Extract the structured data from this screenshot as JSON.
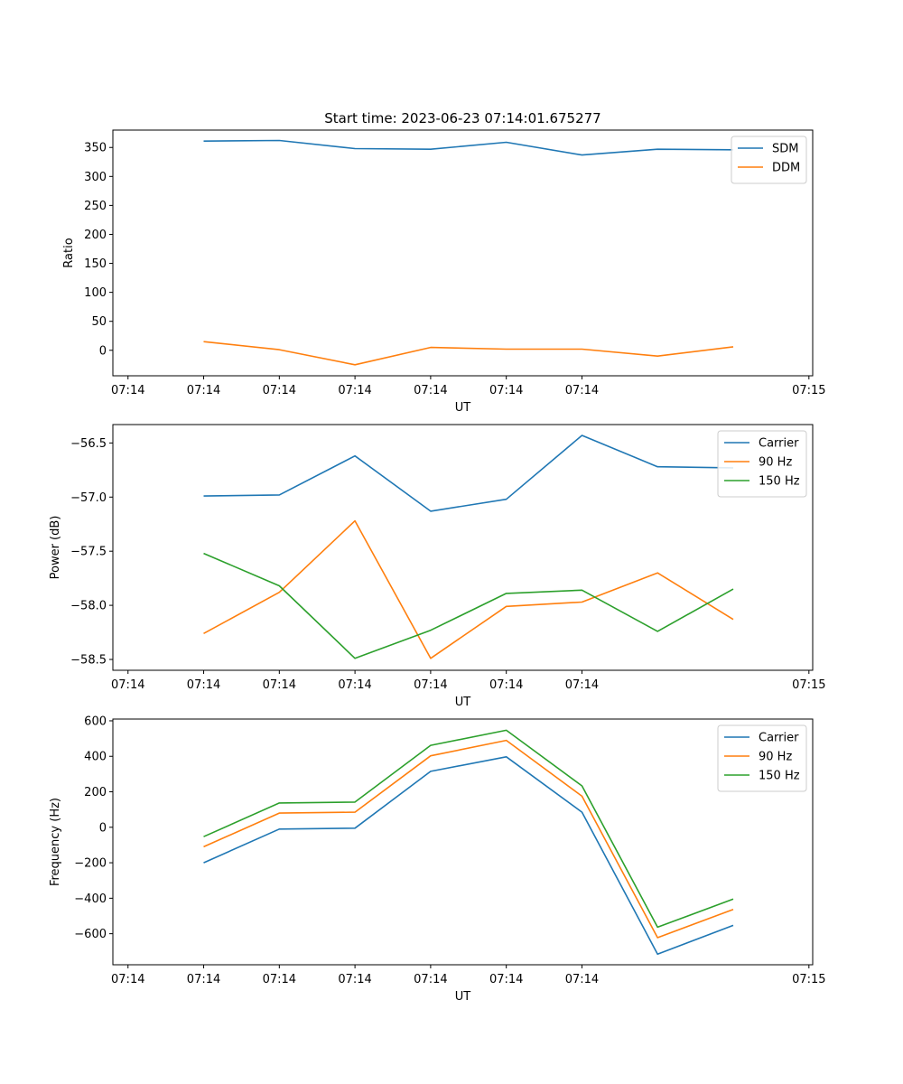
{
  "title": "Start time: 2023-06-23 07:14:01.675277",
  "chart_data": [
    {
      "type": "line",
      "title": "Start time: 2023-06-23 07:14:01.675277",
      "xlabel": "UT",
      "ylabel": "Ratio",
      "x_tick_labels": [
        "07:14",
        "07:14",
        "07:14",
        "07:14",
        "07:14",
        "07:14",
        "07:14",
        "07:15"
      ],
      "x": [
        1,
        2,
        3,
        4,
        5,
        6,
        7,
        8
      ],
      "xlim": [
        -0.2,
        9.05
      ],
      "ylim": [
        -44,
        380
      ],
      "y_ticks": [
        0,
        50,
        100,
        150,
        200,
        250,
        300,
        350
      ],
      "y_tick_labels": [
        "0",
        "50",
        "100",
        "150",
        "200",
        "250",
        "300",
        "350"
      ],
      "legend": "top-right",
      "grid": false,
      "series": [
        {
          "name": "SDM",
          "color": "#1f77b4",
          "values": [
            361,
            362,
            348,
            347,
            359,
            337,
            347,
            346
          ]
        },
        {
          "name": "DDM",
          "color": "#ff7f0e",
          "values": [
            15,
            1,
            -25,
            5,
            2,
            2,
            -10,
            6
          ]
        }
      ]
    },
    {
      "type": "line",
      "xlabel": "UT",
      "ylabel": "Power (dB)",
      "x_tick_labels": [
        "07:14",
        "07:14",
        "07:14",
        "07:14",
        "07:14",
        "07:14",
        "07:14",
        "07:15"
      ],
      "x": [
        1,
        2,
        3,
        4,
        5,
        6,
        7,
        8
      ],
      "xlim": [
        -0.2,
        9.05
      ],
      "ylim": [
        -58.6,
        -56.33
      ],
      "y_ticks": [
        -58.5,
        -58.0,
        -57.5,
        -57.0,
        -56.5
      ],
      "y_tick_labels": [
        "−58.5",
        "−58.0",
        "−57.5",
        "−57.0",
        "−56.5"
      ],
      "legend": "top-right",
      "grid": false,
      "series": [
        {
          "name": "Carrier",
          "color": "#1f77b4",
          "values": [
            -56.99,
            -56.98,
            -56.62,
            -57.13,
            -57.02,
            -56.43,
            -56.72,
            -56.73
          ]
        },
        {
          "name": "90 Hz",
          "color": "#ff7f0e",
          "values": [
            -58.26,
            -57.88,
            -57.22,
            -58.49,
            -58.01,
            -57.97,
            -57.7,
            -58.13
          ]
        },
        {
          "name": "150 Hz",
          "color": "#2ca02c",
          "values": [
            -57.52,
            -57.82,
            -58.49,
            -58.23,
            -57.89,
            -57.86,
            -58.24,
            -57.85
          ]
        }
      ]
    },
    {
      "type": "line",
      "xlabel": "UT",
      "ylabel": "Frequency (Hz)",
      "x_tick_labels": [
        "07:14",
        "07:14",
        "07:14",
        "07:14",
        "07:14",
        "07:14",
        "07:14",
        "07:15"
      ],
      "x": [
        1,
        2,
        3,
        4,
        5,
        6,
        7,
        8
      ],
      "xlim": [
        -0.2,
        9.05
      ],
      "ylim": [
        -775,
        610
      ],
      "y_ticks": [
        -600,
        -400,
        -200,
        0,
        200,
        400,
        600
      ],
      "y_tick_labels": [
        "−600",
        "−400",
        "−200",
        "0",
        "200",
        "400",
        "600"
      ],
      "legend": "top-right",
      "grid": false,
      "series": [
        {
          "name": "Carrier",
          "color": "#1f77b4",
          "values": [
            -200,
            -10,
            -5,
            315,
            397,
            85,
            -715,
            -553
          ]
        },
        {
          "name": "90 Hz",
          "color": "#ff7f0e",
          "values": [
            -110,
            80,
            85,
            403,
            490,
            175,
            -622,
            -463
          ]
        },
        {
          "name": "150 Hz",
          "color": "#2ca02c",
          "values": [
            -53,
            137,
            142,
            462,
            547,
            233,
            -563,
            -405
          ]
        }
      ]
    }
  ]
}
